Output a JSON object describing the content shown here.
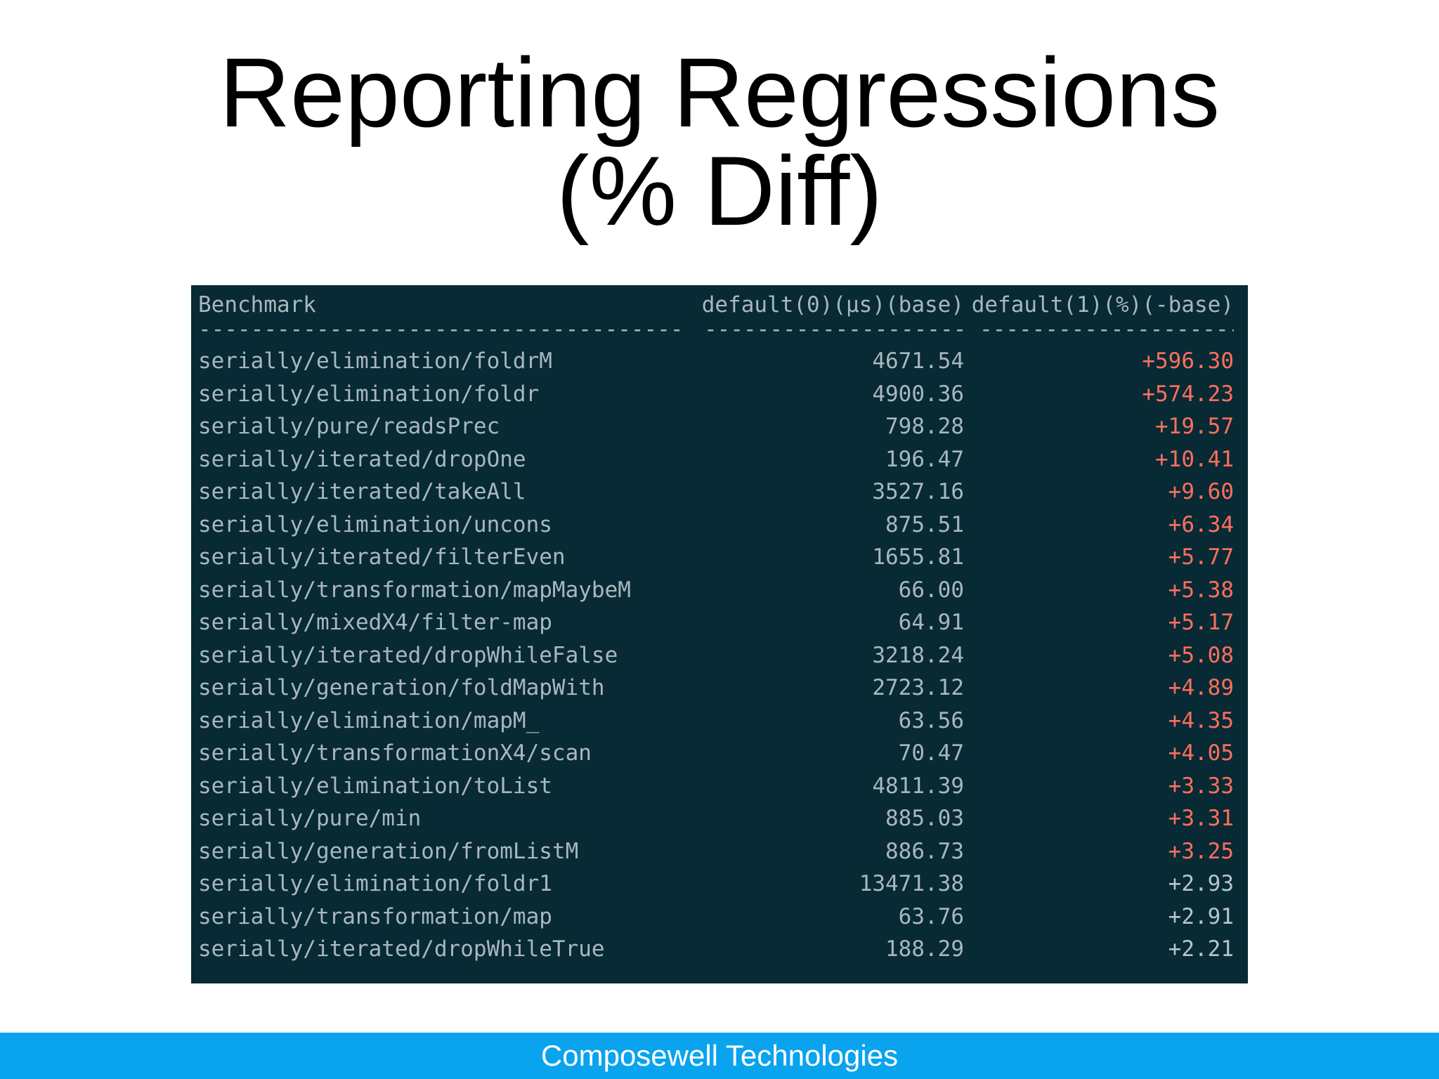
{
  "slide": {
    "title_line1": "Reporting Regressions",
    "title_line2": "(% Diff)"
  },
  "table": {
    "headers": {
      "benchmark": "Benchmark",
      "base": "default(0)(µs)(base)",
      "diff": "default(1)(%)(-base)"
    },
    "separator": {
      "benchmark": "----------------------------------------------------------------------",
      "base": "--------------------------------------",
      "diff": "--------------------------------------"
    },
    "rows": [
      {
        "name": "serially/elimination/foldrM",
        "base": "4671.54",
        "diff": "+596.30",
        "highlight": true
      },
      {
        "name": "serially/elimination/foldr",
        "base": "4900.36",
        "diff": "+574.23",
        "highlight": true
      },
      {
        "name": "serially/pure/readsPrec",
        "base": "798.28",
        "diff": "+19.57",
        "highlight": true
      },
      {
        "name": "serially/iterated/dropOne",
        "base": "196.47",
        "diff": "+10.41",
        "highlight": true
      },
      {
        "name": "serially/iterated/takeAll",
        "base": "3527.16",
        "diff": "+9.60",
        "highlight": true
      },
      {
        "name": "serially/elimination/uncons",
        "base": "875.51",
        "diff": "+6.34",
        "highlight": true
      },
      {
        "name": "serially/iterated/filterEven",
        "base": "1655.81",
        "diff": "+5.77",
        "highlight": true
      },
      {
        "name": "serially/transformation/mapMaybeM",
        "base": "66.00",
        "diff": "+5.38",
        "highlight": true
      },
      {
        "name": "serially/mixedX4/filter-map",
        "base": "64.91",
        "diff": "+5.17",
        "highlight": true
      },
      {
        "name": "serially/iterated/dropWhileFalse",
        "base": "3218.24",
        "diff": "+5.08",
        "highlight": true
      },
      {
        "name": "serially/generation/foldMapWith",
        "base": "2723.12",
        "diff": "+4.89",
        "highlight": true
      },
      {
        "name": "serially/elimination/mapM_",
        "base": "63.56",
        "diff": "+4.35",
        "highlight": true
      },
      {
        "name": "serially/transformationX4/scan",
        "base": "70.47",
        "diff": "+4.05",
        "highlight": true
      },
      {
        "name": "serially/elimination/toList",
        "base": "4811.39",
        "diff": "+3.33",
        "highlight": true
      },
      {
        "name": "serially/pure/min",
        "base": "885.03",
        "diff": "+3.31",
        "highlight": true
      },
      {
        "name": "serially/generation/fromListM",
        "base": "886.73",
        "diff": "+3.25",
        "highlight": true
      },
      {
        "name": "serially/elimination/foldr1",
        "base": "13471.38",
        "diff": "+2.93",
        "highlight": false
      },
      {
        "name": "serially/transformation/map",
        "base": "63.76",
        "diff": "+2.91",
        "highlight": false
      },
      {
        "name": "serially/iterated/dropWhileTrue",
        "base": "188.29",
        "diff": "+2.21",
        "highlight": false
      }
    ]
  },
  "footer": {
    "company": "Composewell Technologies"
  },
  "colors": {
    "terminal_bg": "#072a35",
    "terminal_text": "#a9b7bd",
    "regression_red": "#ff6f5c",
    "footer_bar": "#0aa3ee"
  }
}
